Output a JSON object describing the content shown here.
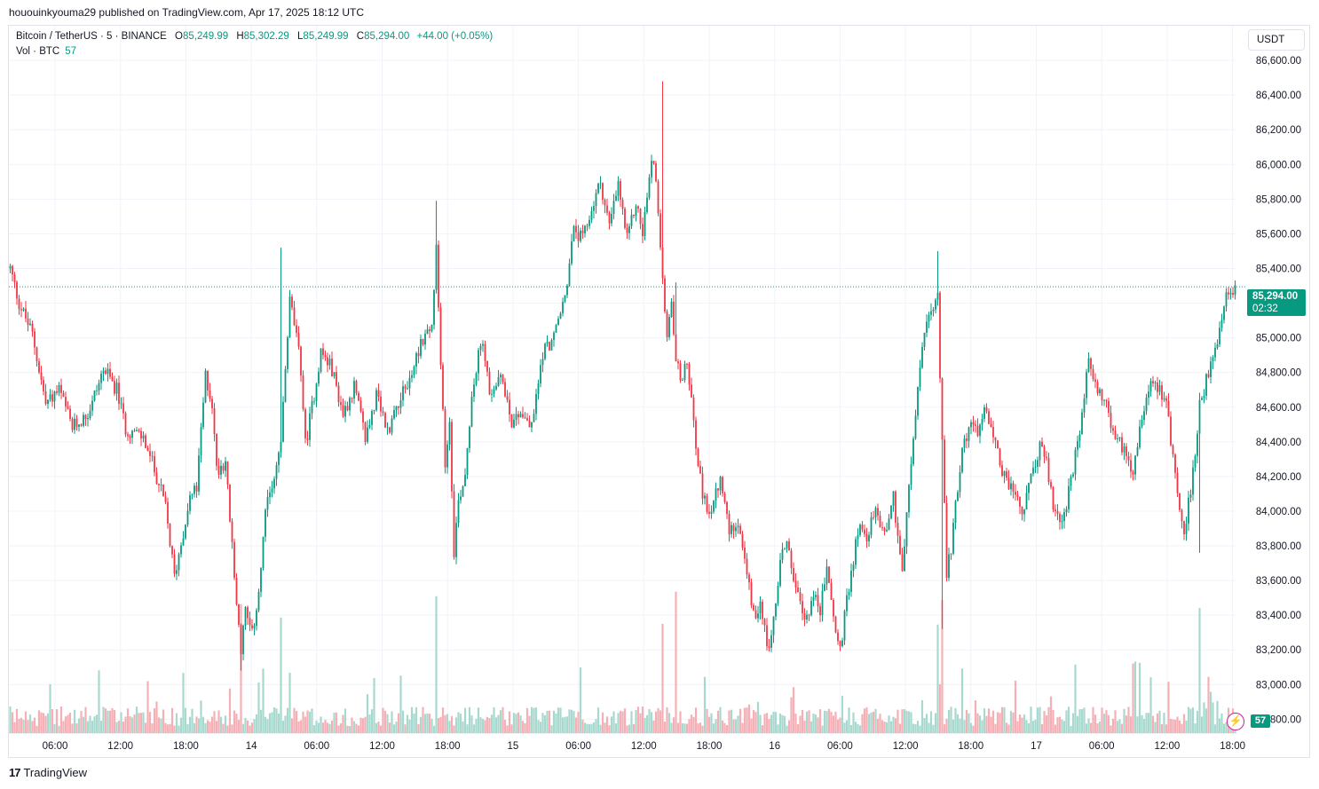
{
  "header": {
    "published": "hououinkyouma29 published on TradingView.com, Apr 17, 2025 18:12 UTC"
  },
  "legend": {
    "symbol": "Bitcoin / TetherUS · 5 · BINANCE",
    "open_label": "O",
    "open": "85,249.99",
    "high_label": "H",
    "high": "85,302.29",
    "low_label": "L",
    "low": "85,249.99",
    "close_label": "C",
    "close": "85,294.00",
    "change": "+44.00 (+0.05%)",
    "vol_label": "Vol · BTC",
    "vol_value": "57"
  },
  "currency": "USDT",
  "last_price": {
    "price": "85,294.00",
    "countdown": "02:32",
    "value": 85294
  },
  "volume_tag": "57",
  "brand": {
    "logo": "17",
    "name": "TradingView"
  },
  "colors": {
    "up": "#089981",
    "down": "#f23645",
    "grid": "#f0f3fa",
    "axis_text": "#131722",
    "vol_up": "#a8d9cf",
    "vol_down": "#f6b0b5"
  },
  "chart_data": {
    "type": "candlestick",
    "title": "Bitcoin / TetherUS · 5 · BINANCE",
    "y_axis": {
      "min": 82720,
      "max": 86800,
      "ticks": [
        82800,
        83000,
        83200,
        83400,
        83600,
        83800,
        84000,
        84200,
        84400,
        84600,
        84800,
        85000,
        85200,
        85400,
        85600,
        85800,
        86000,
        86200,
        86400,
        86600
      ]
    },
    "x_axis": {
      "ticks": [
        "06:00",
        "12:00",
        "18:00",
        "14",
        "06:00",
        "12:00",
        "18:00",
        "15",
        "06:00",
        "12:00",
        "18:00",
        "16",
        "06:00",
        "12:00",
        "18:00",
        "17",
        "06:00",
        "12:00",
        "18:00"
      ]
    },
    "last_price": 85294,
    "series": [
      {
        "name": "path",
        "points": [
          [
            0,
            85400
          ],
          [
            4,
            85200
          ],
          [
            10,
            85020
          ],
          [
            16,
            84620
          ],
          [
            22,
            84700
          ],
          [
            28,
            84480
          ],
          [
            35,
            84560
          ],
          [
            42,
            84820
          ],
          [
            48,
            84700
          ],
          [
            52,
            84480
          ],
          [
            60,
            84420
          ],
          [
            66,
            84200
          ],
          [
            70,
            84020
          ],
          [
            74,
            83620
          ],
          [
            77,
            83820
          ],
          [
            81,
            84080
          ],
          [
            84,
            84130
          ],
          [
            88,
            84780
          ],
          [
            91,
            84620
          ],
          [
            93,
            84240
          ],
          [
            97,
            84290
          ],
          [
            101,
            83620
          ],
          [
            104,
            83200
          ],
          [
            106,
            83420
          ],
          [
            109,
            83280
          ],
          [
            112,
            83540
          ],
          [
            115,
            83980
          ],
          [
            118,
            84150
          ],
          [
            122,
            84400
          ],
          [
            126,
            85220
          ],
          [
            128,
            85080
          ],
          [
            131,
            84820
          ],
          [
            133,
            84380
          ],
          [
            136,
            84600
          ],
          [
            140,
            84920
          ],
          [
            145,
            84820
          ],
          [
            150,
            84560
          ],
          [
            155,
            84720
          ],
          [
            160,
            84420
          ],
          [
            165,
            84660
          ],
          [
            170,
            84460
          ],
          [
            175,
            84640
          ],
          [
            180,
            84750
          ],
          [
            185,
            84980
          ],
          [
            190,
            85060
          ],
          [
            192,
            85500
          ],
          [
            194,
            84820
          ],
          [
            196,
            84280
          ],
          [
            198,
            84520
          ],
          [
            200,
            83780
          ],
          [
            202,
            84060
          ],
          [
            205,
            84220
          ],
          [
            208,
            84680
          ],
          [
            212,
            84960
          ],
          [
            214,
            84900
          ],
          [
            216,
            84640
          ],
          [
            218,
            84720
          ],
          [
            222,
            84760
          ],
          [
            226,
            84520
          ],
          [
            230,
            84580
          ],
          [
            235,
            84480
          ],
          [
            240,
            84920
          ],
          [
            245,
            85000
          ],
          [
            250,
            85240
          ],
          [
            254,
            85620
          ],
          [
            258,
            85560
          ],
          [
            262,
            85740
          ],
          [
            266,
            85900
          ],
          [
            270,
            85640
          ],
          [
            274,
            85880
          ],
          [
            278,
            85560
          ],
          [
            282,
            85780
          ],
          [
            285,
            85600
          ],
          [
            288,
            85920
          ],
          [
            290,
            86050
          ],
          [
            292,
            85720
          ],
          [
            294,
            85300
          ],
          [
            296,
            84980
          ],
          [
            298,
            85180
          ],
          [
            300,
            84880
          ],
          [
            302,
            84760
          ],
          [
            305,
            84860
          ],
          [
            308,
            84520
          ],
          [
            312,
            84060
          ],
          [
            316,
            84000
          ],
          [
            320,
            84180
          ],
          [
            324,
            83880
          ],
          [
            328,
            83960
          ],
          [
            332,
            83620
          ],
          [
            336,
            83340
          ],
          [
            338,
            83520
          ],
          [
            341,
            83200
          ],
          [
            344,
            83360
          ],
          [
            347,
            83720
          ],
          [
            350,
            83840
          ],
          [
            354,
            83540
          ],
          [
            358,
            83360
          ],
          [
            362,
            83520
          ],
          [
            365,
            83420
          ],
          [
            368,
            83680
          ],
          [
            372,
            83300
          ],
          [
            374,
            83200
          ],
          [
            378,
            83560
          ],
          [
            382,
            83900
          ],
          [
            386,
            83860
          ],
          [
            390,
            84000
          ],
          [
            394,
            83880
          ],
          [
            398,
            84080
          ],
          [
            402,
            83660
          ],
          [
            405,
            84120
          ],
          [
            408,
            84560
          ],
          [
            411,
            84960
          ],
          [
            414,
            85120
          ],
          [
            416,
            85140
          ],
          [
            418,
            85220
          ],
          [
            420,
            84400
          ],
          [
            422,
            83620
          ],
          [
            424,
            83800
          ],
          [
            428,
            84260
          ],
          [
            432,
            84500
          ],
          [
            436,
            84460
          ],
          [
            440,
            84600
          ],
          [
            444,
            84380
          ],
          [
            448,
            84200
          ],
          [
            452,
            84120
          ],
          [
            456,
            83980
          ],
          [
            460,
            84180
          ],
          [
            464,
            84380
          ],
          [
            467,
            84280
          ],
          [
            470,
            84020
          ],
          [
            474,
            83940
          ],
          [
            478,
            84160
          ],
          [
            482,
            84460
          ],
          [
            486,
            84860
          ],
          [
            490,
            84720
          ],
          [
            494,
            84600
          ],
          [
            498,
            84420
          ],
          [
            502,
            84360
          ],
          [
            506,
            84240
          ],
          [
            510,
            84560
          ],
          [
            514,
            84760
          ],
          [
            518,
            84720
          ],
          [
            521,
            84620
          ],
          [
            524,
            84320
          ],
          [
            527,
            84000
          ],
          [
            529,
            83880
          ],
          [
            532,
            84120
          ],
          [
            536,
            84600
          ],
          [
            540,
            84800
          ],
          [
            544,
            84960
          ],
          [
            548,
            85220
          ],
          [
            552,
            85300
          ]
        ]
      }
    ],
    "extremes": {
      "high": 86480,
      "low": 83080,
      "high_time": "Apr 15 ~13:45",
      "low_time": "Apr 14 ~22:00"
    },
    "volume": {
      "label": "Vol · BTC",
      "last": 57,
      "spike_scale_btc": 300
    }
  }
}
